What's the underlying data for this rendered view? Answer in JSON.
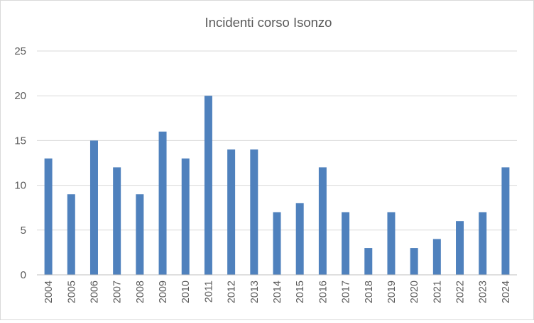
{
  "chart_data": {
    "type": "bar",
    "title": "Incidenti corso Isonzo",
    "xlabel": "",
    "ylabel": "",
    "categories": [
      "2004",
      "2005",
      "2006",
      "2007",
      "2008",
      "2009",
      "2010",
      "2011",
      "2012",
      "2013",
      "2014",
      "2015",
      "2016",
      "2017",
      "2018",
      "2019",
      "2020",
      "2021",
      "2022",
      "2023",
      "2024"
    ],
    "values": [
      13,
      9,
      15,
      12,
      9,
      16,
      13,
      20,
      14,
      14,
      7,
      8,
      12,
      7,
      3,
      7,
      3,
      4,
      6,
      7,
      12
    ],
    "ylim": [
      0,
      25
    ],
    "yticks": [
      "0",
      "5",
      "10",
      "15",
      "20",
      "25"
    ],
    "grid": true,
    "legend": "none",
    "colors": {
      "bar": "#4f81bd",
      "grid": "#d9d9d9",
      "axis": "#bfbfbf",
      "text": "#595959"
    }
  }
}
